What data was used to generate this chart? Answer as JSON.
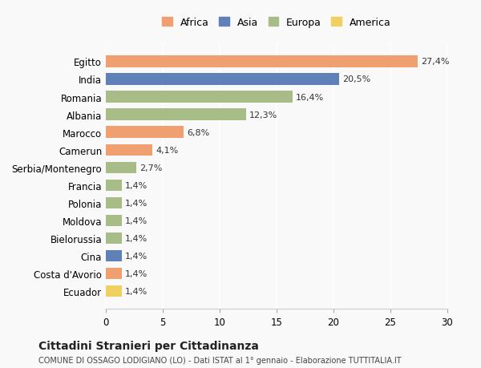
{
  "countries": [
    "Egitto",
    "India",
    "Romania",
    "Albania",
    "Marocco",
    "Camerun",
    "Serbia/Montenegro",
    "Francia",
    "Polonia",
    "Moldova",
    "Bielorussia",
    "Cina",
    "Costa d'Avorio",
    "Ecuador"
  ],
  "values": [
    27.4,
    20.5,
    16.4,
    12.3,
    6.8,
    4.1,
    2.7,
    1.4,
    1.4,
    1.4,
    1.4,
    1.4,
    1.4,
    1.4
  ],
  "labels": [
    "27,4%",
    "20,5%",
    "16,4%",
    "12,3%",
    "6,8%",
    "4,1%",
    "2,7%",
    "1,4%",
    "1,4%",
    "1,4%",
    "1,4%",
    "1,4%",
    "1,4%",
    "1,4%"
  ],
  "continents": [
    "Africa",
    "Asia",
    "Europa",
    "Europa",
    "Africa",
    "Africa",
    "Europa",
    "Europa",
    "Europa",
    "Europa",
    "Europa",
    "Asia",
    "Africa",
    "America"
  ],
  "colors": {
    "Africa": "#F0A070",
    "Asia": "#6080B8",
    "Europa": "#A8BC88",
    "America": "#F0D060"
  },
  "legend_order": [
    "Africa",
    "Asia",
    "Europa",
    "America"
  ],
  "title": "Cittadini Stranieri per Cittadinanza",
  "subtitle": "COMUNE DI OSSAGO LODIGIANO (LO) - Dati ISTAT al 1° gennaio - Elaborazione TUTTITALIA.IT",
  "xlim": [
    0,
    30
  ],
  "xticks": [
    0,
    5,
    10,
    15,
    20,
    25,
    30
  ],
  "background_color": "#f9f9f9"
}
